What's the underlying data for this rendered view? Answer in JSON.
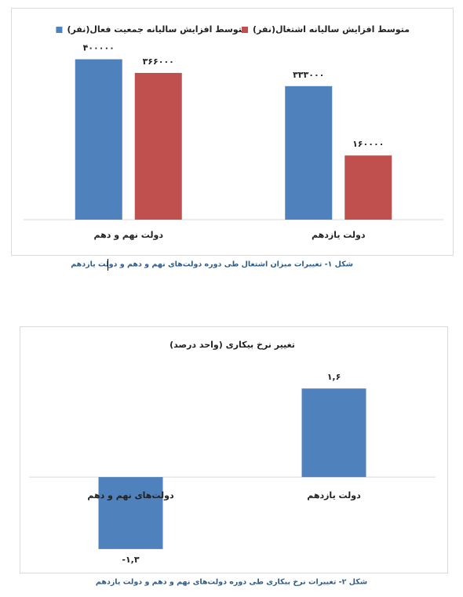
{
  "chart_data": [
    {
      "type": "bar",
      "categories": [
        "دولت نهم و دهم",
        "دولت یازدهم"
      ],
      "series": [
        {
          "name": "متوسط افزایش سالیانه جمعیت فعال(نفر)",
          "color": "#4f81bd",
          "values": [
            400000,
            333000
          ],
          "value_labels": [
            "۴۰۰۰۰۰",
            "۳۳۳۰۰۰"
          ]
        },
        {
          "name": "متوسط افزایش سالیانه اشتغال(نفر)",
          "color": "#c0504d",
          "values": [
            366000,
            160000
          ],
          "value_labels": [
            "۳۶۶۰۰۰",
            "۱۶۰۰۰۰"
          ]
        }
      ],
      "ylim": [
        0,
        450000
      ]
    },
    {
      "type": "bar",
      "title": "تغییر نرخ بیکاری (واحد درصد)",
      "categories": [
        "دولت‌های نهم و دهم",
        "دولت یازدهم"
      ],
      "values": [
        -1.3,
        1.6
      ],
      "value_labels": [
        "-۱,۳",
        "۱,۶"
      ],
      "color": "#4f81bd",
      "ylim": [
        -1.5,
        2
      ]
    }
  ],
  "captions": [
    "شکل ۱- تغییرات میزان اشتغال طی دوره دولت‌های نهم و دهم و دولت یازدهم",
    "شکل ۲- تغییرات نرخ بیکاری طی دوره دولت‌های نهم و دهم و دولت یازدهم"
  ]
}
